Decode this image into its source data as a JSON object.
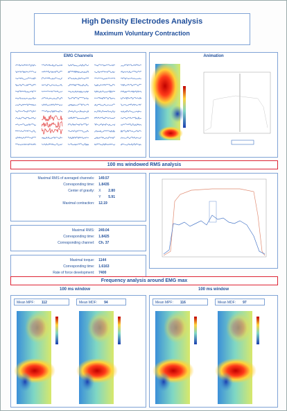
{
  "header": {
    "title": "High Density Electrodes Analysis",
    "subtitle": "Maximum Voluntary Contraction"
  },
  "panels": {
    "emg": "EMG Channels",
    "animation": "Animation"
  },
  "rms_section": {
    "title": "100 ms windowed RMS analysis",
    "groups": [
      {
        "rows": [
          {
            "label": "Maximal RMS of averaged channels:",
            "value": "149.57"
          },
          {
            "label": "Corresponding time:",
            "value": "1.8435"
          },
          {
            "label": "Center of gravity:",
            "axis": "X",
            "value": "2.80"
          },
          {
            "label": "",
            "axis": "Y",
            "value": "5.91"
          },
          {
            "label": "Maximal contraction:",
            "value": "12.19"
          }
        ]
      },
      {
        "rows": [
          {
            "label": "Maximal RMS:",
            "value": "249.04"
          },
          {
            "label": "Corresponding time:",
            "value": "1.8425"
          },
          {
            "label": "Corresponding channel:",
            "value": "Ch. 37"
          }
        ]
      },
      {
        "rows": [
          {
            "label": "Maximal torque:",
            "value": "1144"
          },
          {
            "label": "Corresponding time:",
            "value": "1.6163"
          },
          {
            "label": "Rate of force development:",
            "value": "7400"
          }
        ]
      }
    ]
  },
  "frequency_section": {
    "title": "Frequency analysis around EMG max",
    "windows": [
      {
        "title": "100 ms window",
        "mpf_label": "Mean MPF:",
        "mpf": "112",
        "mdf_label": "Mean MDF:",
        "mdf": "94"
      },
      {
        "title": "100 ms window",
        "mpf_label": "Mean MPF:",
        "mpf": "116",
        "mdf_label": "Mean MDF:",
        "mdf": "97"
      }
    ]
  }
}
